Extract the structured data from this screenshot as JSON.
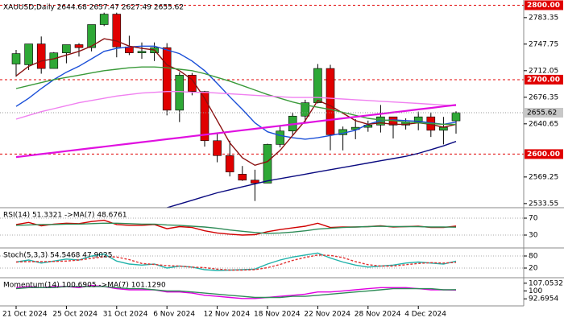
{
  "chart_data": [
    {
      "type": "candlestick",
      "title": "XAUUSD,Daily  2644.68 2657.47 2627.49 2655.62",
      "categories": [
        "21 Oct 2024",
        null,
        null,
        null,
        "25 Oct 2024",
        null,
        null,
        null,
        "31 Oct 2024",
        null,
        null,
        null,
        "6 Nov 2024",
        null,
        null,
        null,
        "12 Nov 2024",
        null,
        null,
        null,
        "18 Nov 2024",
        null,
        null,
        null,
        "22 Nov 2024",
        null,
        null,
        null,
        "28 Nov 2024",
        null,
        null,
        null,
        "4 Dec 2024",
        null,
        null,
        null
      ],
      "open": [
        2721,
        2720,
        2748,
        2715,
        2736,
        2747,
        2743,
        2774,
        2788,
        2744,
        2736,
        2736,
        2743,
        2659,
        2706,
        2684,
        2618,
        2598,
        2573,
        2565,
        2561,
        2613,
        2631,
        2651,
        2669,
        2715,
        2626,
        2633,
        2636,
        2639,
        2650,
        2639,
        2643,
        2650,
        2632,
        2644.68
      ],
      "high": [
        2740,
        2748,
        2758,
        2737,
        2747,
        2749,
        2773,
        2790,
        2790,
        2759,
        2750,
        2750,
        2749,
        2710,
        2709,
        2685,
        2627,
        2618,
        2584,
        2579,
        2614,
        2639,
        2656,
        2673,
        2721,
        2720,
        2637,
        2647,
        2645,
        2666,
        2650,
        2648,
        2657,
        2656,
        2650,
        2657.47
      ],
      "low": [
        2704,
        2713,
        2708,
        2715,
        2722,
        2731,
        2738,
        2772,
        2730,
        2733,
        2728,
        2725,
        2652,
        2643,
        2679,
        2610,
        2589,
        2570,
        2564,
        2537,
        2561,
        2609,
        2625,
        2641,
        2668,
        2605,
        2605,
        2620,
        2630,
        2629,
        2621,
        2633,
        2632,
        2623,
        2613,
        2627.49
      ],
      "close": [
        2735,
        2748,
        2715,
        2736,
        2747,
        2743,
        2774,
        2788,
        2744,
        2736,
        2738,
        2743,
        2659,
        2706,
        2684,
        2618,
        2598,
        2576,
        2565,
        2561,
        2613,
        2631,
        2651,
        2669,
        2715,
        2626,
        2633,
        2636,
        2639,
        2650,
        2639,
        2643,
        2650,
        2632,
        2636,
        2655.62
      ],
      "up_color": "#2ea836",
      "down_color": "#e00000",
      "series": [
        {
          "color": "#1a4fd8",
          "values": [
            2664,
            2675,
            2688,
            2700,
            2710,
            2718,
            2728,
            2738,
            2742,
            2744,
            2745,
            2745,
            2740,
            2735,
            2725,
            2712,
            2695,
            2677,
            2660,
            2642,
            2630,
            2625,
            2622,
            2620,
            2622,
            2625,
            2628,
            2632,
            2640,
            2645,
            2646,
            2645,
            2644,
            2642,
            2640,
            2643
          ]
        },
        {
          "color": "#8b1010",
          "values": [
            2705,
            2718,
            2725,
            2728,
            2733,
            2738,
            2745,
            2755,
            2752,
            2745,
            2742,
            2740,
            2720,
            2712,
            2700,
            2675,
            2645,
            2615,
            2595,
            2585,
            2590,
            2605,
            2625,
            2645,
            2672,
            2665,
            2655,
            2645,
            2640,
            2642,
            2640,
            2640,
            2642,
            2640,
            2636,
            2640
          ]
        },
        {
          "color": "#3a9a3a",
          "values": [
            2688,
            2692,
            2696,
            2700,
            2703,
            2706,
            2709,
            2712,
            2714,
            2716,
            2717,
            2717,
            2716,
            2714,
            2712,
            2708,
            2703,
            2698,
            2692,
            2686,
            2680,
            2675,
            2670,
            2666,
            2663,
            2660,
            2656,
            2652,
            2648,
            2646,
            2645,
            2643,
            2642,
            2641,
            2640,
            2640
          ]
        },
        {
          "color": "#f080f0",
          "values": [
            2647,
            2652,
            2657,
            2661,
            2665,
            2669,
            2672,
            2675,
            2678,
            2680,
            2682,
            2683,
            2684,
            2684,
            2683,
            2683,
            2682,
            2681,
            2680,
            2679,
            2678,
            2677,
            2676,
            2676,
            2676,
            2675,
            2674,
            2673,
            2672,
            2671,
            2670,
            2669,
            2668,
            2667,
            2666,
            2665
          ]
        },
        {
          "color": "#e010e0",
          "values": [
            2596,
            2598,
            2600,
            2602,
            2604,
            2606,
            2608,
            2610,
            2612,
            2614,
            2616,
            2618,
            2620,
            2622,
            2624,
            2626,
            2628,
            2630,
            2632,
            2634,
            2636,
            2638,
            2640,
            2642,
            2644,
            2646,
            2648,
            2650,
            2652,
            2654,
            2656,
            2658,
            2660,
            2662,
            2664,
            2666
          ]
        },
        {
          "color": "#0a0a80",
          "values": [
            null,
            null,
            null,
            null,
            null,
            null,
            null,
            null,
            null,
            null,
            null,
            null,
            2528,
            2533,
            2538,
            2543,
            2548,
            2552,
            2556,
            2560,
            2564,
            2567,
            2570,
            2573,
            2576,
            2579,
            2582,
            2585,
            2588,
            2591,
            2594,
            2597,
            2601,
            2606,
            2611,
            2617
          ]
        }
      ],
      "ylim": [
        2528,
        2807
      ],
      "yticks": [
        2783.35,
        2747.75,
        2712.05,
        2676.35,
        2640.65,
        2569.25,
        2533.55
      ],
      "levels": [
        {
          "value": 2800,
          "label": "2800.00"
        },
        {
          "value": 2700,
          "label": "2700.00"
        },
        {
          "value": 2600,
          "label": "2600.00"
        }
      ],
      "level_color": "#e00000",
      "current": {
        "value": 2655.62,
        "label": "2655.62"
      },
      "grid": false
    },
    {
      "type": "line",
      "title": "RSI(14) 51.3321 ->MA(7) 48.6761",
      "series": [
        {
          "color": "#d00000",
          "values": [
            55,
            60,
            52,
            56,
            58,
            57,
            62,
            65,
            55,
            53,
            53,
            55,
            45,
            50,
            48,
            40,
            35,
            32,
            30,
            31,
            38,
            43,
            47,
            51,
            58,
            48,
            49,
            49,
            50,
            52,
            49,
            50,
            51,
            48,
            48,
            51.3321
          ]
        },
        {
          "color": "#2e8b57",
          "values": [
            53,
            54,
            55,
            55,
            56,
            56,
            57,
            58,
            58,
            57,
            56,
            56,
            54,
            53,
            51,
            49,
            46,
            42,
            39,
            36,
            34,
            35,
            37,
            40,
            44,
            46,
            48,
            49,
            50,
            51,
            50,
            50,
            50,
            49,
            49,
            48.6761
          ]
        }
      ],
      "ylim": [
        3.3,
        94.8
      ],
      "yticks": [
        70,
        30
      ],
      "grid": true
    },
    {
      "type": "line",
      "title": "Stoch(5,3,3) 54.5468 47.9025",
      "series": [
        {
          "color": "#20b2aa",
          "values": [
            50,
            60,
            45,
            55,
            65,
            60,
            80,
            90,
            55,
            40,
            35,
            40,
            20,
            30,
            25,
            12,
            8,
            10,
            12,
            15,
            40,
            60,
            75,
            85,
            95,
            70,
            50,
            35,
            25,
            30,
            35,
            45,
            50,
            45,
            40,
            54.5468
          ]
        },
        {
          "color": "#e03030",
          "dash": true,
          "values": [
            50,
            52,
            52,
            53,
            55,
            60,
            68,
            77,
            75,
            62,
            43,
            38,
            32,
            30,
            25,
            22,
            15,
            10,
            10,
            12,
            22,
            38,
            58,
            73,
            85,
            83,
            72,
            52,
            37,
            30,
            30,
            37,
            43,
            47,
            45,
            47.9025
          ]
        }
      ],
      "ylim": [
        -20,
        120
      ],
      "yticks": [
        80,
        20
      ],
      "grid": true
    },
    {
      "type": "line",
      "title": "Momentum(14) 100.6905 ->MA(7) 101.1290",
      "series": [
        {
          "color": "#e000e0",
          "values": [
            103,
            104,
            103,
            104,
            104,
            103,
            105,
            104,
            102,
            101,
            101,
            101,
            99,
            99,
            98,
            96,
            95,
            94,
            93,
            93,
            94,
            95,
            96,
            97,
            99,
            99,
            100,
            101,
            102,
            103,
            103,
            103,
            102,
            101,
            101,
            100.6905
          ]
        },
        {
          "color": "#2e8b57",
          "values": [
            102,
            103,
            103,
            103,
            104,
            104,
            104,
            104,
            103,
            102,
            102,
            101,
            100,
            100,
            99,
            98,
            97,
            96,
            95,
            94,
            94,
            94,
            95,
            95,
            96,
            97,
            98,
            99,
            100,
            101,
            102,
            102,
            102,
            102,
            101,
            101.129
          ]
        }
      ],
      "ylim": [
        86.2,
        112.1
      ],
      "yticks": [
        107.0532,
        100,
        92.6954
      ],
      "grid": false
    }
  ]
}
